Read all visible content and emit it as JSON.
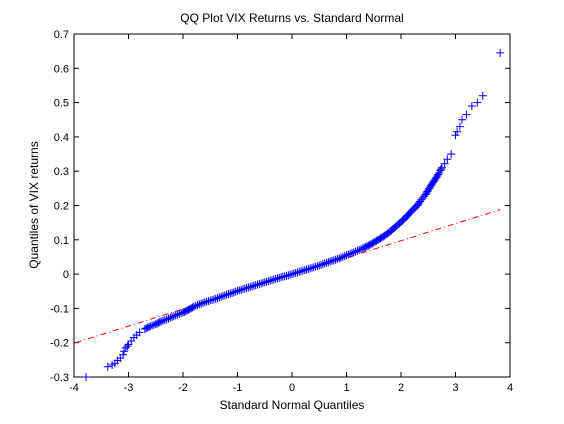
{
  "chart_data": {
    "type": "scatter",
    "title": "QQ Plot VIX Returns vs. Standard Normal",
    "xlabel": "Standard Normal Quantiles",
    "ylabel": "Quantiles of VIX returns",
    "xlim": [
      -4,
      4
    ],
    "ylim": [
      -0.3,
      0.7
    ],
    "xticks": [
      -4,
      -3,
      -2,
      -1,
      0,
      1,
      2,
      3,
      4
    ],
    "xtick_labels": [
      "-4",
      "-3",
      "-2",
      "-1",
      "0",
      "1",
      "2",
      "3",
      "4"
    ],
    "yticks": [
      -0.3,
      -0.2,
      -0.1,
      0,
      0.1,
      0.2,
      0.3,
      0.4,
      0.5,
      0.6,
      0.7
    ],
    "ytick_labels": [
      "-0.3",
      "-0.2",
      "-0.1",
      "0",
      "0.1",
      "0.2",
      "0.3",
      "0.4",
      "0.5",
      "0.6",
      "0.7"
    ],
    "grid": false,
    "legend": "none",
    "marker": "+",
    "colors": {
      "points": "#0000ff",
      "reference_line": "#ff0000"
    },
    "reference_line": {
      "style": "dash-dot",
      "x": [
        -3.97,
        3.82
      ],
      "y": [
        -0.2,
        0.188
      ]
    },
    "quantiles": {
      "x": [
        -3.78,
        -3.38,
        -3.3,
        -3.25,
        -3.2,
        -3.15,
        -3.1,
        -3.08,
        -3.05,
        -3.02,
        -3.0,
        -2.95,
        -2.9,
        -2.85,
        -2.8,
        -2.7,
        -2.6,
        -2.5,
        -2.4,
        -2.3,
        -2.2,
        -2.1,
        -2.0,
        -1.9,
        -1.8,
        -1.7,
        -1.6,
        -1.5,
        -1.4,
        -1.3,
        -1.2,
        -1.1,
        -1.0,
        -0.9,
        -0.8,
        -0.7,
        -0.6,
        -0.5,
        -0.4,
        -0.3,
        -0.2,
        -0.1,
        0.0,
        0.1,
        0.2,
        0.3,
        0.4,
        0.5,
        0.6,
        0.7,
        0.8,
        0.9,
        1.0,
        1.1,
        1.2,
        1.3,
        1.4,
        1.5,
        1.6,
        1.7,
        1.8,
        1.9,
        2.0,
        2.1,
        2.2,
        2.3,
        2.35,
        2.4,
        2.45,
        2.5,
        2.55,
        2.6,
        2.65,
        2.7,
        2.72,
        2.75,
        2.8,
        2.85,
        2.92,
        3.0,
        3.03,
        3.08,
        3.12,
        3.2,
        3.3,
        3.4,
        3.5,
        3.82
      ],
      "y": [
        -0.3,
        -0.27,
        -0.265,
        -0.26,
        -0.252,
        -0.245,
        -0.235,
        -0.225,
        -0.215,
        -0.21,
        -0.205,
        -0.195,
        -0.185,
        -0.178,
        -0.17,
        -0.16,
        -0.152,
        -0.146,
        -0.138,
        -0.132,
        -0.125,
        -0.118,
        -0.112,
        -0.104,
        -0.095,
        -0.088,
        -0.082,
        -0.077,
        -0.072,
        -0.066,
        -0.06,
        -0.055,
        -0.049,
        -0.044,
        -0.039,
        -0.034,
        -0.029,
        -0.024,
        -0.019,
        -0.014,
        -0.009,
        -0.005,
        0.0,
        0.005,
        0.01,
        0.015,
        0.02,
        0.025,
        0.031,
        0.037,
        0.042,
        0.048,
        0.055,
        0.061,
        0.068,
        0.075,
        0.083,
        0.092,
        0.102,
        0.112,
        0.124,
        0.138,
        0.152,
        0.167,
        0.185,
        0.2,
        0.212,
        0.222,
        0.232,
        0.245,
        0.258,
        0.27,
        0.282,
        0.295,
        0.302,
        0.31,
        0.322,
        0.335,
        0.35,
        0.405,
        0.415,
        0.43,
        0.45,
        0.465,
        0.49,
        0.5,
        0.52,
        0.645
      ]
    }
  }
}
